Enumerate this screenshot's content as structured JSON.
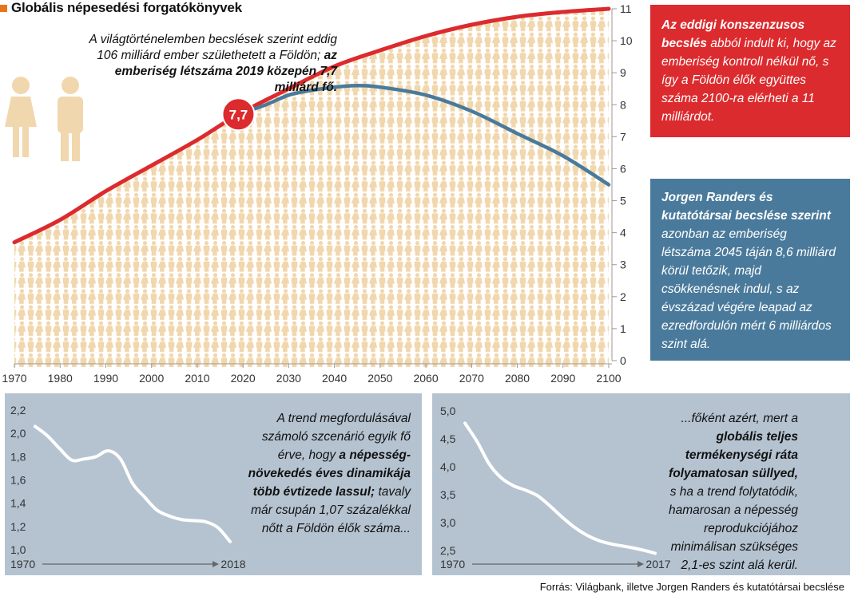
{
  "title": "Globális népesedési forgatókönyvek",
  "intro": {
    "part1": "A világtörténelemben becslések szerint eddig 106 milliárd ember születhetett a Földön;",
    "part2": "az emberiség létszáma 2019 közepén 7,7 milliárd fő."
  },
  "marker_label": "7,7",
  "red_box": {
    "bold": "Az eddigi konszenzusos becslés",
    "rest": "abból indult ki, hogy az emberiség kontroll nélkül nő, s így a Földön élők együttes száma 2100-ra elérheti a 11 milliárdot."
  },
  "blue_box": {
    "bold": "Jorgen Randers és kutatótársai becslése szerint",
    "rest": "azonban az emberiség létszáma 2045 táján 8,6 milliárd körül tetőzik, majd csökkenésnek indul, s az évszázad végére leapad az ezredfordulón mért 6 milliárdos szint alá."
  },
  "left_panel_text": {
    "p1": "A trend megfordulásával számoló szcenárió egyik fő érve, hogy",
    "bold": "a népesség-növekedés éves dinamikája több évtizede lassul;",
    "p2": "tavaly már csupán 1,07 százalékkal nőtt a  Földön élők száma..."
  },
  "right_panel_text": {
    "p1": "...főként azért, mert a",
    "bold": "globális teljes termékenységi ráta folyamatosan süllyed,",
    "p2": "s ha a trend folytatódik, hamarosan a népesség reprodukciójához minimálisan szükséges 2,1-es szint alá kerül."
  },
  "source": "Forrás: Világbank, illetve Jorgen Randers és kutatótársai becslése",
  "colors": {
    "red": "#dc2b2e",
    "blue": "#4a7a9b",
    "figure": "#f1d7ad",
    "panel_bg": "#b5c3d1",
    "accent": "#e8751a"
  },
  "chart_data": [
    {
      "type": "line",
      "x_ticks": [
        "1970",
        "1980",
        "1990",
        "2000",
        "2010",
        "2020",
        "2030",
        "2040",
        "2050",
        "2060",
        "2070",
        "2080",
        "2090",
        "2100"
      ],
      "y_ticks": [
        "0",
        "1",
        "2",
        "3",
        "4",
        "5",
        "6",
        "7",
        "8",
        "9",
        "10",
        "11"
      ],
      "xlim": [
        1970,
        2100
      ],
      "ylim": [
        0,
        11
      ],
      "series": [
        {
          "role": "consensus",
          "color": "#dc2b2e",
          "x": [
            1970,
            1980,
            1990,
            2000,
            2010,
            2019,
            2030,
            2040,
            2050,
            2060,
            2070,
            2080,
            2090,
            2100
          ],
          "y": [
            3.7,
            4.4,
            5.3,
            6.1,
            6.9,
            7.7,
            8.5,
            9.2,
            9.7,
            10.15,
            10.5,
            10.75,
            10.9,
            11.0
          ]
        },
        {
          "role": "randers",
          "color": "#4a7a9b",
          "x": [
            2019,
            2025,
            2030,
            2035,
            2040,
            2045,
            2050,
            2060,
            2070,
            2080,
            2090,
            2100
          ],
          "y": [
            7.7,
            8.0,
            8.3,
            8.45,
            8.55,
            8.6,
            8.55,
            8.3,
            7.8,
            7.1,
            6.4,
            5.5
          ]
        }
      ]
    },
    {
      "type": "line",
      "y_ticks": [
        "1,0",
        "1,2",
        "1,4",
        "1,6",
        "1,8",
        "2,0",
        "2,2"
      ],
      "ylim": [
        1.0,
        2.2
      ],
      "x_start": "1970",
      "x_end": "2018",
      "x": [
        1970,
        1973,
        1976,
        1979,
        1982,
        1985,
        1988,
        1991,
        1994,
        1997,
        2000,
        2003,
        2006,
        2009,
        2012,
        2015,
        2018
      ],
      "y": [
        2.06,
        1.98,
        1.87,
        1.77,
        1.78,
        1.8,
        1.85,
        1.78,
        1.57,
        1.45,
        1.34,
        1.29,
        1.26,
        1.25,
        1.24,
        1.19,
        1.07
      ]
    },
    {
      "type": "line",
      "y_ticks": [
        "2,5",
        "3,0",
        "3,5",
        "4,0",
        "4,5",
        "5,0"
      ],
      "ylim": [
        2.5,
        5.0
      ],
      "x_start": "1970",
      "x_end": "2017",
      "x": [
        1970,
        1973,
        1976,
        1979,
        1982,
        1985,
        1988,
        1991,
        1994,
        1997,
        2000,
        2003,
        2006,
        2009,
        2012,
        2015,
        2017
      ],
      "y": [
        4.78,
        4.45,
        4.05,
        3.8,
        3.66,
        3.58,
        3.48,
        3.3,
        3.1,
        2.92,
        2.78,
        2.68,
        2.62,
        2.58,
        2.54,
        2.49,
        2.45
      ]
    }
  ]
}
